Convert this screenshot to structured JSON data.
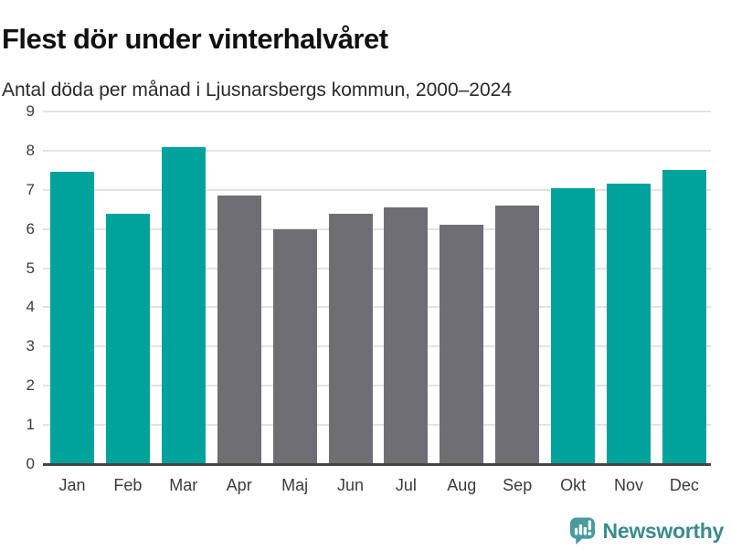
{
  "header": {
    "title": "Flest dör under vinterhalvåret",
    "subtitle": "Antal döda per månad i Ljusnarsbergs kommun, 2000–2024"
  },
  "chart_data": {
    "type": "bar",
    "title": "Flest dör under vinterhalvåret",
    "subtitle": "Antal döda per månad i Ljusnarsbergs kommun, 2000–2024",
    "categories": [
      "Jan",
      "Feb",
      "Mar",
      "Apr",
      "Maj",
      "Jun",
      "Jul",
      "Aug",
      "Sep",
      "Okt",
      "Nov",
      "Dec"
    ],
    "values": [
      7.45,
      6.4,
      8.1,
      6.85,
      6.0,
      6.4,
      6.55,
      6.1,
      6.6,
      7.05,
      7.15,
      7.5
    ],
    "bar_colors": [
      "#00a39b",
      "#00a39b",
      "#00a39b",
      "#6e6e73",
      "#6e6e73",
      "#6e6e73",
      "#6e6e73",
      "#6e6e73",
      "#6e6e73",
      "#00a39b",
      "#00a39b",
      "#00a39b"
    ],
    "highlight_color": "#00a39b",
    "muted_color": "#6e6e73",
    "xlabel": "",
    "ylabel": "",
    "ylim": [
      0,
      9
    ],
    "yticks": [
      0,
      1,
      2,
      3,
      4,
      5,
      6,
      7,
      8,
      9
    ],
    "grid": "horizontal",
    "legend": "none",
    "gridline_color": "#e3e3e3",
    "baseline_color": "#454545"
  },
  "footer": {
    "brand": "Newsworthy",
    "brand_color": "#398b8d",
    "logo_color": "#4a9b9d"
  }
}
